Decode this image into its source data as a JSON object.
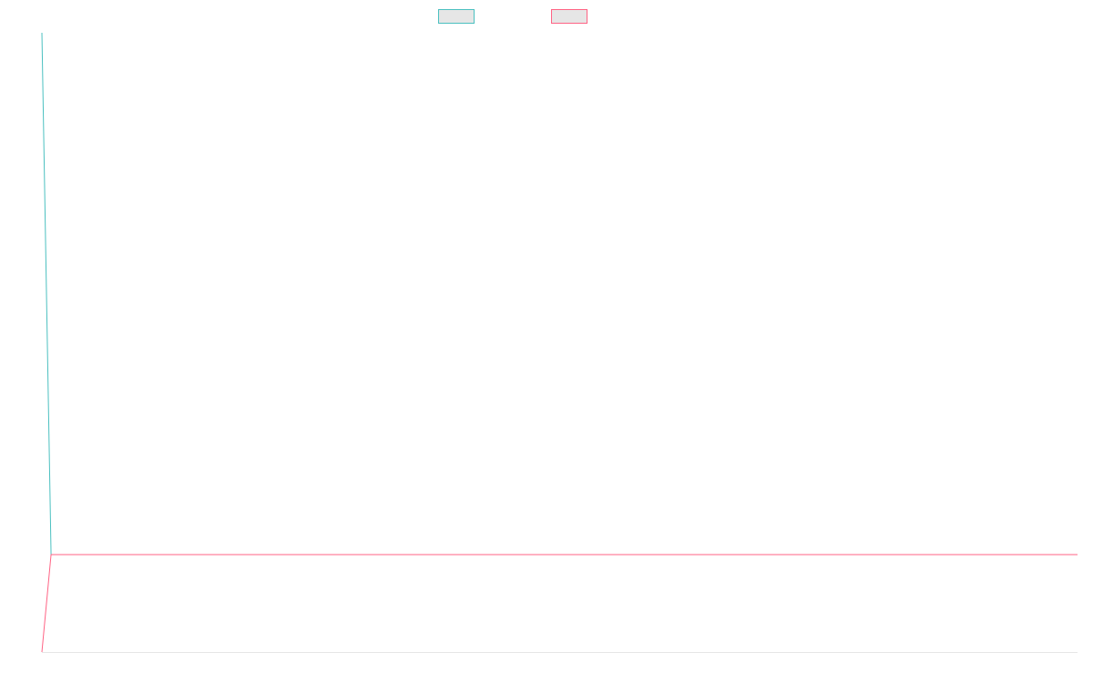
{
  "chart_data": {
    "type": "line",
    "title": "",
    "xlabel": "",
    "ylabel": "",
    "x": [
      0,
      1,
      2,
      3,
      4,
      5,
      6,
      7,
      8,
      9,
      10,
      11,
      12,
      13,
      14,
      15,
      16,
      17,
      18,
      19,
      20,
      21,
      22,
      23,
      24,
      25,
      26,
      27,
      28,
      29,
      30,
      31,
      32,
      33,
      34,
      35,
      36,
      37,
      38,
      39,
      40,
      41,
      42,
      43,
      44,
      45,
      46,
      47,
      48,
      49,
      50,
      51,
      52,
      53,
      54,
      55,
      56,
      57,
      58,
      59,
      60,
      61,
      62,
      63,
      64,
      65,
      66,
      67,
      68,
      69,
      70,
      71,
      72,
      73,
      74,
      75,
      76,
      77,
      78,
      79,
      80,
      81,
      82,
      83,
      84,
      85,
      86,
      87,
      88,
      89,
      90,
      91,
      92,
      93,
      94,
      95,
      96,
      97,
      98,
      99,
      100,
      101,
      102,
      103,
      104,
      105,
      106,
      107,
      108,
      109,
      110,
      111,
      112,
      113
    ],
    "ylim": [
      0,
      680
    ],
    "grid": false,
    "legend": "top-center",
    "series": [
      {
        "name": "",
        "color": "#4bc0c0",
        "values": [
          680,
          107,
          107,
          107,
          107,
          107,
          107,
          107,
          107,
          107,
          107,
          107,
          107,
          107,
          107,
          107,
          107,
          107,
          107,
          107,
          107,
          107,
          107,
          107,
          107,
          107,
          107,
          107,
          107,
          107,
          107,
          107,
          107,
          107,
          107,
          107,
          107,
          107,
          107,
          107,
          107,
          107,
          107,
          107,
          107,
          107,
          107,
          107,
          107,
          107,
          107,
          107,
          107,
          107,
          107,
          107,
          107,
          107,
          107,
          107,
          107,
          107,
          107,
          107,
          107,
          107,
          107,
          107,
          107,
          107,
          107,
          107,
          107,
          107,
          107,
          107,
          107,
          107,
          107,
          107,
          107,
          107,
          107,
          107,
          107,
          107,
          107,
          107,
          107,
          107,
          107,
          107,
          107,
          107,
          107,
          107,
          107,
          107,
          107,
          107,
          107,
          107,
          107,
          107,
          107,
          107,
          107,
          107,
          107,
          107,
          107,
          107,
          107,
          107
        ]
      },
      {
        "name": "",
        "color": "#ff6384",
        "values": [
          0,
          107,
          107,
          107,
          107,
          107,
          107,
          107,
          107,
          107,
          107,
          107,
          107,
          107,
          107,
          107,
          107,
          107,
          107,
          107,
          107,
          107,
          107,
          107,
          107,
          107,
          107,
          107,
          107,
          107,
          107,
          107,
          107,
          107,
          107,
          107,
          107,
          107,
          107,
          107,
          107,
          107,
          107,
          107,
          107,
          107,
          107,
          107,
          107,
          107,
          107,
          107,
          107,
          107,
          107,
          107,
          107,
          107,
          107,
          107,
          107,
          107,
          107,
          107,
          107,
          107,
          107,
          107,
          107,
          107,
          107,
          107,
          107,
          107,
          107,
          107,
          107,
          107,
          107,
          107,
          107,
          107,
          107,
          107,
          107,
          107,
          107,
          107,
          107,
          107,
          107,
          107,
          107,
          107,
          107,
          107,
          107,
          107,
          107,
          107,
          107,
          107,
          107,
          107,
          107,
          107,
          107,
          107,
          107,
          107,
          107,
          107,
          107,
          107
        ]
      }
    ]
  }
}
